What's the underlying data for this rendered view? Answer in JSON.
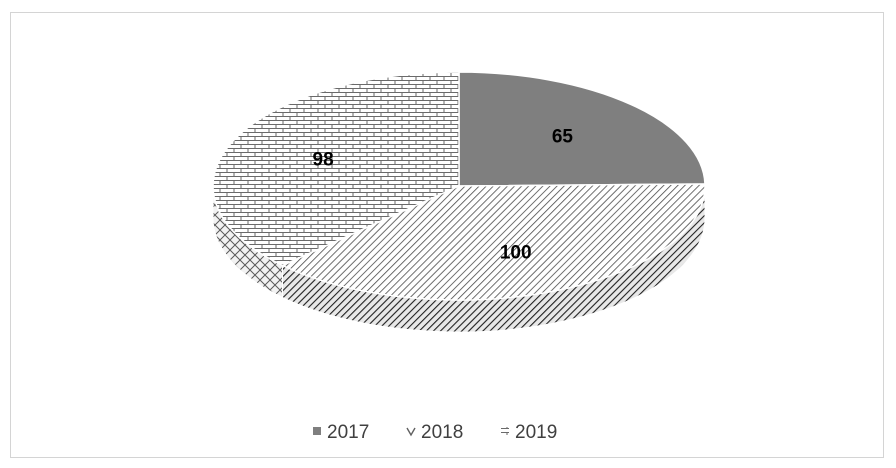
{
  "chart_data": {
    "type": "pie",
    "style": "3d",
    "title": "",
    "categories": [
      "2017",
      "2018",
      "2019"
    ],
    "values": [
      65,
      100,
      98
    ],
    "data_labels": [
      "65",
      "100",
      "98"
    ],
    "legend": {
      "placement": "bottom",
      "entries": [
        "2017",
        "2018",
        "2019"
      ]
    },
    "series_fills": {
      "2017": "solid-gray",
      "2018": "dense-diagonal-hatch",
      "2019": "brick-pattern"
    },
    "colors": {
      "2017": "#7f7f7f",
      "2018": "#5a5a5a",
      "2019": "#6e6e6e"
    }
  }
}
